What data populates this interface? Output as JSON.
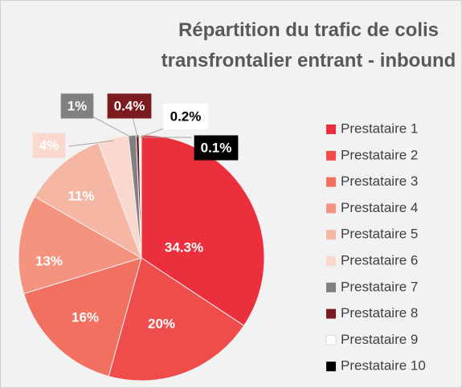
{
  "chart_data": {
    "type": "pie",
    "title": "Répartition du trafic de colis transfrontalier entrant - inbound",
    "categories": [
      "Prestataire 1",
      "Prestataire 2",
      "Prestataire 3",
      "Prestataire 4",
      "Prestataire 5",
      "Prestataire 6",
      "Prestataire 7",
      "Prestataire 8",
      "Prestataire 9",
      "Prestataire 10"
    ],
    "values": [
      34.3,
      20,
      16,
      13,
      11,
      4,
      1,
      0.4,
      0.2,
      0.1
    ],
    "value_labels": [
      "34.3%",
      "20%",
      "16%",
      "13%",
      "11%",
      "4%",
      "1%",
      "0.4%",
      "0.2%",
      "0.1%"
    ],
    "colors": [
      "#ec2f3d",
      "#ef4c4c",
      "#f2705f",
      "#f4937e",
      "#f6b6a4",
      "#fad8ce",
      "#808080",
      "#7a1b1e",
      "#ffffff",
      "#000000"
    ],
    "legend": "right"
  }
}
